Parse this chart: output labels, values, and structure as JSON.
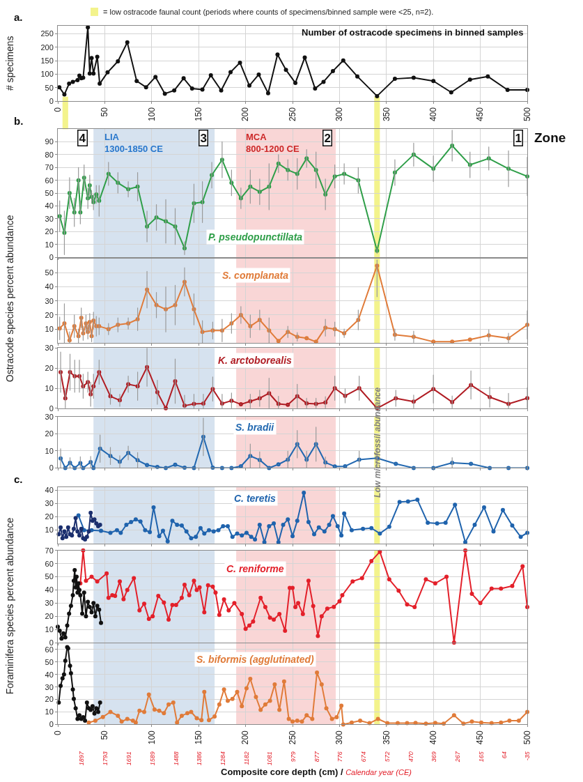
{
  "chart_data": [
    {
      "type": "line",
      "title": "Number of ostracode specimens in binned samples",
      "ylabel": "# specimens",
      "xlim": [
        0,
        500
      ],
      "xticks": [
        0,
        50,
        100,
        150,
        200,
        250,
        300,
        350,
        400,
        450,
        500
      ],
      "ylim": [
        0,
        280
      ],
      "yticks": [
        0,
        50,
        100,
        150,
        200,
        250
      ],
      "grid": true,
      "marker": "circle",
      "annotations": [
        "a."
      ],
      "bands": [
        {
          "axis": "x",
          "from": 5,
          "to": 11,
          "color": "#f3f38c",
          "label": "= low ostracode faunal count (periods where counts of specimens/binned sample were <25, n=2)."
        },
        {
          "axis": "x",
          "from": 337,
          "to": 343,
          "color": "#f3f38c"
        }
      ],
      "series": [
        {
          "color": "#111111",
          "x": [
            1.6,
            7,
            12,
            16,
            21,
            23,
            25,
            27,
            32,
            34,
            36,
            38,
            42,
            44.6,
            53,
            64,
            74,
            84,
            94,
            104,
            114,
            124,
            134,
            143,
            154,
            163,
            174,
            184,
            194,
            204,
            214,
            224,
            234,
            243,
            253,
            263,
            274,
            283,
            293,
            304,
            319,
            340,
            359,
            379,
            400,
            419,
            439,
            458,
            479,
            500
          ],
          "values": [
            52,
            25,
            65,
            72,
            78,
            95,
            85,
            87,
            274,
            103,
            160,
            103,
            165,
            65,
            107,
            148,
            218,
            75,
            52,
            90,
            28,
            40,
            85,
            47,
            43,
            96,
            40,
            108,
            143,
            58,
            99,
            30,
            173,
            116,
            68,
            162,
            47,
            72,
            112,
            151,
            92,
            19,
            83,
            87,
            75,
            33,
            80,
            92,
            42,
            42
          ]
        }
      ]
    },
    {
      "type": "line",
      "ylabel": "Ostracode species percent abundance",
      "xlim": [
        0,
        500
      ],
      "xticks": [
        0,
        50,
        100,
        150,
        200,
        250,
        300,
        350,
        400,
        450,
        500
      ],
      "ylim": [
        0,
        100
      ],
      "yticks": [
        0,
        10,
        20,
        30,
        40,
        50,
        60,
        70,
        80,
        90
      ],
      "grid": true,
      "marker": "circle",
      "tick_labels": "y",
      "annotations": [
        "b.",
        "Zone",
        {
          "text": "4",
          "x": 26,
          "y": 93
        },
        {
          "text": "3",
          "x": 155,
          "y": 93
        },
        {
          "text": "2",
          "x": 287,
          "y": 93
        },
        {
          "text": "1",
          "x": 490,
          "y": 93
        }
      ],
      "bands": [
        {
          "axis": "x",
          "from": 38,
          "to": 167,
          "color": "#d6e2ef",
          "label": "LIA\n1300-1850 CE"
        },
        {
          "axis": "x",
          "from": 190,
          "to": 296,
          "color": "#f9d6d6",
          "label": "MCA\n800-1200 CE"
        },
        {
          "axis": "x",
          "from": 337,
          "to": 343,
          "color": "#f3f38c"
        }
      ],
      "series": [
        {
          "name": "P. pseudopunctillata",
          "color": "#2e9e48",
          "x": [
            2,
            7,
            12.5,
            17.6,
            22,
            24,
            28,
            32,
            34,
            36,
            38,
            41,
            44,
            54,
            64,
            75,
            85,
            95,
            105,
            115,
            125,
            135,
            145,
            154,
            164,
            175,
            185,
            195,
            205,
            215,
            225,
            235,
            245,
            255,
            265,
            275,
            285,
            295,
            305,
            320,
            340,
            359,
            379,
            400,
            420,
            439,
            459,
            480,
            500
          ],
          "values": [
            32,
            19,
            50,
            35,
            60,
            35,
            62,
            46,
            56,
            47,
            43,
            49,
            44,
            65,
            58,
            53,
            55,
            24,
            31,
            28,
            24,
            7,
            42,
            43,
            64,
            76,
            58,
            46,
            55,
            51,
            55,
            73,
            68,
            65,
            77,
            68,
            49,
            63,
            65,
            60,
            5,
            66,
            80,
            69,
            87,
            72,
            77,
            69,
            63
          ],
          "errors": [
            12,
            17,
            12,
            11,
            10,
            9,
            10,
            8,
            8,
            5,
            6,
            7,
            12,
            9,
            8,
            6,
            11,
            12,
            10,
            17,
            14,
            5,
            15,
            16,
            10,
            14,
            10,
            8,
            13,
            10,
            18,
            7,
            8,
            12,
            7,
            14,
            12,
            9,
            8,
            10,
            2,
            10,
            9,
            10,
            12,
            10,
            9,
            14,
            15
          ]
        }
      ]
    },
    {
      "type": "line",
      "xlim": [
        0,
        500
      ],
      "xticks": [
        0,
        50,
        100,
        150,
        200,
        250,
        300,
        350,
        400,
        450,
        500
      ],
      "ylim": [
        0,
        60
      ],
      "yticks": [
        10,
        20,
        30,
        40,
        50
      ],
      "grid": true,
      "marker": "circle",
      "tick_labels": "y",
      "bands": [
        {
          "axis": "x",
          "from": 38,
          "to": 167,
          "color": "#d6e2ef"
        },
        {
          "axis": "x",
          "from": 190,
          "to": 296,
          "color": "#f9d6d6"
        },
        {
          "axis": "x",
          "from": 337,
          "to": 343,
          "color": "#f3f38c"
        }
      ],
      "series": [
        {
          "name": "S. complanata",
          "color": "#e07b39",
          "x": [
            2,
            7,
            12.5,
            17.6,
            22,
            25,
            27,
            30,
            32,
            34,
            36,
            38,
            41,
            44,
            54,
            64,
            75,
            85,
            95,
            105,
            115,
            125,
            135,
            145,
            154,
            165,
            175,
            185,
            195,
            205,
            215,
            225,
            235,
            245,
            255,
            265,
            275,
            285,
            295,
            305,
            320,
            340,
            359,
            379,
            400,
            420,
            439,
            459,
            480,
            500
          ],
          "values": [
            10.5,
            14,
            2,
            12,
            5,
            18,
            7,
            14,
            8,
            15,
            5,
            16,
            12,
            12,
            10,
            13,
            14,
            17,
            38,
            27,
            24,
            27,
            43.5,
            24,
            8,
            9,
            9,
            14,
            20,
            12,
            16.5,
            9,
            1.5,
            8,
            4.5,
            3.5,
            1,
            11,
            10,
            7,
            16.5,
            55,
            6,
            4.5,
            1,
            1,
            2.5,
            5.5,
            3.5,
            13
          ],
          "errors": [
            8,
            14,
            [
              0,
              8
            ],
            8,
            5,
            7,
            5,
            6,
            5,
            6,
            4,
            6,
            7,
            6,
            4,
            5,
            4,
            8,
            13,
            9,
            16,
            14,
            10,
            11,
            8,
            6,
            8,
            7,
            6,
            8,
            7,
            9,
            null,
            4,
            3,
            null,
            null,
            6,
            5,
            3,
            7,
            [
              33,
              59
            ],
            4,
            4,
            null,
            null,
            null,
            4,
            [
              0,
              7
            ],
            10
          ]
        }
      ]
    },
    {
      "type": "line",
      "xlim": [
        0,
        500
      ],
      "xticks": [
        0,
        50,
        100,
        150,
        200,
        250,
        300,
        350,
        400,
        450,
        500
      ],
      "ylim": [
        0,
        30
      ],
      "yticks": [
        0,
        10,
        20,
        30
      ],
      "grid": true,
      "marker": "circle",
      "tick_labels": "y",
      "bands": [
        {
          "axis": "x",
          "from": 38,
          "to": 167,
          "color": "#d6e2ef"
        },
        {
          "axis": "x",
          "from": 190,
          "to": 296,
          "color": "#f9d6d6"
        },
        {
          "axis": "x",
          "from": 337,
          "to": 343,
          "color": "#f3f38c"
        }
      ],
      "series": [
        {
          "name": "K. arctoborealis",
          "color": "#b01c23",
          "x": [
            3,
            8,
            13,
            18,
            23,
            27,
            32,
            35,
            38,
            44,
            56,
            66,
            75,
            85,
            95,
            106,
            115,
            125,
            135,
            145,
            155,
            165,
            175,
            185,
            195,
            205,
            215,
            225,
            235,
            245,
            255,
            265,
            275,
            285,
            295,
            306,
            321,
            340,
            360,
            379,
            400,
            420,
            440,
            460,
            480,
            500
          ],
          "values": [
            18,
            5,
            18,
            16,
            16,
            11,
            13,
            7,
            11,
            18,
            6,
            4,
            12,
            11,
            20.5,
            8,
            0,
            13.5,
            1.3,
            2.2,
            2.4,
            9.6,
            2.4,
            3.8,
            2,
            3.5,
            5,
            7.5,
            2.2,
            1.8,
            6,
            2.5,
            2.2,
            2.9,
            10,
            6.2,
            10,
            0,
            5,
            3.3,
            9.6,
            3.1,
            11.6,
            5.6,
            2.2,
            5.1
          ],
          "errors": [
            10,
            5,
            9,
            8,
            8,
            6,
            5,
            6,
            6,
            6,
            4,
            3,
            4,
            7,
            9.5,
            6,
            null,
            11,
            [
              0,
              6.5
            ],
            [
              0,
              7
            ],
            [
              0,
              7
            ],
            6,
            [
              0,
              7
            ],
            3.8,
            null,
            3.5,
            4,
            7.5,
            [
              0,
              6
            ],
            null,
            6,
            2.5,
            [
              0,
              5
            ],
            2.9,
            6,
            3.5,
            6,
            null,
            4,
            3.3,
            7,
            3.1,
            7,
            5,
            [
              0,
              7.5
            ],
            5.1
          ]
        }
      ]
    },
    {
      "type": "line",
      "xlim": [
        0,
        500
      ],
      "xticks": [
        0,
        50,
        100,
        150,
        200,
        250,
        300,
        350,
        400,
        450,
        500
      ],
      "ylim": [
        0,
        30
      ],
      "yticks": [
        0,
        10,
        20,
        30
      ],
      "grid": true,
      "marker": "circle",
      "tick_labels": "y",
      "bands": [
        {
          "axis": "x",
          "from": 38,
          "to": 167,
          "color": "#d6e2ef"
        },
        {
          "axis": "x",
          "from": 190,
          "to": 296,
          "color": "#f9d6d6"
        },
        {
          "axis": "x",
          "from": 337,
          "to": 343,
          "color": "#f3f38c",
          "label": "Low microfossil abundance"
        }
      ],
      "series": [
        {
          "name": "S. bradii",
          "color": "#2268b0",
          "x": [
            3,
            8,
            13,
            18,
            24,
            27,
            35,
            38,
            45,
            56,
            66,
            75,
            85,
            95,
            106,
            115,
            125,
            135,
            145,
            155,
            165,
            175,
            185,
            195,
            205,
            215,
            225,
            235,
            245,
            255,
            265,
            275,
            285,
            295,
            306,
            321,
            340,
            360,
            379,
            400,
            420,
            440,
            460,
            480,
            500
          ],
          "values": [
            5.6,
            0,
            3,
            0,
            2.8,
            0,
            3.4,
            0,
            11.3,
            7,
            3.6,
            8.8,
            4.5,
            1.7,
            0.6,
            0,
            1.9,
            0.2,
            0,
            18.2,
            0.2,
            0,
            0,
            1,
            7,
            4.7,
            0,
            2.1,
            4.9,
            13.9,
            4.9,
            13.9,
            3.2,
            0.9,
            1,
            4.9,
            5.8,
            2.4,
            0,
            0,
            3,
            2.4,
            0,
            0,
            0
          ],
          "errors": [
            5.6,
            null,
            3,
            null,
            [
              0,
              6.5
            ],
            null,
            3.4,
            null,
            8,
            5,
            3.6,
            4,
            4.5,
            null,
            null,
            null,
            null,
            null,
            null,
            11,
            null,
            null,
            null,
            null,
            7,
            4.7,
            null,
            null,
            4.9,
            8,
            4.9,
            10,
            3.2,
            null,
            null,
            4.9,
            5.8,
            null,
            null,
            null,
            3,
            null,
            null,
            null,
            null
          ]
        }
      ]
    },
    {
      "type": "line",
      "ylabel": "Foraminifera species percent abundance",
      "xlim": [
        0,
        500
      ],
      "xticks": [
        0,
        50,
        100,
        150,
        200,
        250,
        300,
        350,
        400,
        450,
        500
      ],
      "ylim": [
        0,
        42
      ],
      "yticks": [
        10,
        20,
        30,
        40
      ],
      "grid": true,
      "marker": "circle",
      "tick_labels": "y",
      "annotations": [
        "c."
      ],
      "bands": [
        {
          "axis": "x",
          "from": 38,
          "to": 167,
          "color": "#d6e2ef"
        },
        {
          "axis": "x",
          "from": 190,
          "to": 296,
          "color": "#f9d6d6"
        },
        {
          "axis": "x",
          "from": 337,
          "to": 343,
          "color": "#f3f38c"
        }
      ],
      "series": [
        {
          "name": "C. teretis",
          "color": "#1f63ad",
          "x": [
            22,
            28,
            36,
            46,
            56,
            63,
            67,
            73,
            78,
            83,
            88,
            93,
            98,
            102,
            108,
            112,
            117,
            122,
            127,
            132,
            137,
            142,
            147,
            152,
            156,
            161,
            166,
            171,
            176,
            181,
            186,
            191,
            196,
            201,
            206,
            210,
            215,
            220,
            225,
            230,
            235,
            240,
            245,
            250,
            255,
            262,
            267,
            273,
            278,
            284,
            289,
            293,
            298,
            302,
            305,
            313,
            325,
            334,
            343,
            353,
            364,
            373,
            383,
            394,
            404,
            413,
            423,
            434,
            444,
            454,
            464,
            474,
            484,
            493,
            500
          ],
          "values": [
            21,
            10,
            10,
            9.5,
            8,
            10,
            8,
            14,
            16,
            18,
            16.5,
            10,
            8.5,
            27,
            5.5,
            9.5,
            1.6,
            17,
            14,
            13.5,
            9,
            4,
            5,
            11.5,
            7.5,
            10,
            9,
            10,
            13,
            13,
            5,
            7.5,
            6,
            8,
            5,
            3,
            14,
            1,
            13,
            15,
            1,
            14,
            18,
            5.5,
            17,
            38,
            16,
            7,
            12,
            9,
            14,
            20.5,
            13,
            6,
            22.5,
            10,
            11,
            11.5,
            7.5,
            12.5,
            31,
            31.5,
            32.7,
            15.5,
            15,
            15.5,
            29,
            1,
            14,
            27,
            9,
            25,
            13.5,
            5,
            8
          ]
        },
        {
          "color": "#1b2f6e",
          "x": [
            1,
            3,
            5,
            7,
            9,
            11,
            13,
            15,
            17,
            19,
            21,
            23,
            25,
            27,
            29,
            31,
            33,
            35,
            37,
            39,
            41,
            43,
            45
          ],
          "values": [
            7,
            12,
            4,
            9,
            5,
            12,
            7,
            6,
            11,
            19,
            9,
            6,
            11,
            4,
            3,
            5,
            9,
            23,
            17,
            18,
            15,
            13,
            14
          ]
        }
      ]
    },
    {
      "type": "line",
      "xlim": [
        0,
        500
      ],
      "xticks": [
        0,
        50,
        100,
        150,
        200,
        250,
        300,
        350,
        400,
        450,
        500
      ],
      "ylim": [
        0,
        70
      ],
      "yticks": [
        0,
        10,
        20,
        30,
        40,
        50,
        60,
        70
      ],
      "grid": true,
      "marker": "circle",
      "tick_labels": "y",
      "bands": [
        {
          "axis": "x",
          "from": 38,
          "to": 167,
          "color": "#d6e2ef"
        },
        {
          "axis": "x",
          "from": 190,
          "to": 296,
          "color": "#f9d6d6"
        },
        {
          "axis": "x",
          "from": 337,
          "to": 343,
          "color": "#f3f38c"
        }
      ],
      "series": [
        {
          "name": "C. reniforme",
          "color": "#e3202a",
          "x": [
            24,
            27,
            30,
            36,
            42,
            52,
            54,
            58,
            61,
            66,
            70,
            74,
            81,
            87,
            92,
            97,
            101,
            107,
            113,
            118,
            122,
            126,
            132,
            135,
            140,
            145,
            148,
            151,
            156,
            160,
            165,
            168,
            172,
            177,
            182,
            188,
            196,
            200,
            204,
            208,
            216,
            221,
            226,
            230,
            236,
            242,
            247,
            250,
            253,
            256,
            261,
            267,
            272,
            277,
            281,
            287,
            294,
            300,
            303,
            314,
            324,
            334,
            343,
            353,
            363,
            372,
            380,
            392,
            402,
            414,
            422,
            434,
            441,
            450,
            462,
            472,
            484,
            495,
            500
          ],
          "values": [
            45,
            70,
            47,
            50,
            46.5,
            52.6,
            34,
            36,
            35.5,
            46.5,
            33,
            40,
            49,
            24.5,
            29.5,
            18,
            20,
            35.5,
            30.5,
            17.5,
            28.6,
            28.6,
            34,
            44,
            36,
            47,
            40,
            42,
            23,
            43.5,
            42.5,
            38,
            21,
            32.8,
            24.5,
            30,
            21.7,
            10.5,
            13,
            16,
            34,
            27,
            19,
            17.5,
            21.7,
            9,
            41.5,
            41.5,
            27,
            30,
            21.7,
            47,
            27.8,
            5,
            20,
            25.8,
            27.2,
            31.4,
            36,
            46.5,
            49,
            62,
            69,
            48,
            39.5,
            29,
            27,
            48,
            45,
            50,
            0,
            70,
            37,
            30,
            41,
            41,
            43,
            58,
            27
          ]
        },
        {
          "color": "#111111",
          "x": [
            0,
            2,
            4,
            6,
            8,
            10,
            12,
            14,
            16,
            17,
            18,
            19,
            20,
            21,
            22,
            23,
            24,
            26,
            28,
            30,
            32,
            34,
            36,
            38,
            40,
            42,
            44,
            46
          ],
          "values": [
            12,
            9,
            3,
            7,
            4,
            13,
            22,
            28,
            36,
            47,
            55,
            42,
            50,
            38,
            45,
            40,
            36,
            22,
            38,
            20,
            31,
            27,
            23,
            30,
            20,
            28,
            25,
            15
          ]
        }
      ]
    },
    {
      "type": "line",
      "xlabel": "Composite core depth (cm) /",
      "x2label": "Calendar year (CE)",
      "xlim": [
        0,
        500
      ],
      "xticks": [
        0,
        50,
        100,
        150,
        200,
        250,
        300,
        350,
        400,
        450,
        500
      ],
      "ylim": [
        0,
        65
      ],
      "yticks": [
        0,
        10,
        20,
        30,
        40,
        50,
        60
      ],
      "grid": true,
      "marker": "circle",
      "x2lim": [
        2000,
        -35
      ],
      "x2ticks": [
        1897,
        1793,
        1691,
        1589,
        1488,
        1386,
        1284,
        1182,
        1081,
        979,
        877,
        776,
        674,
        572,
        470,
        369,
        267,
        165,
        64,
        -35
      ],
      "bands": [
        {
          "axis": "x",
          "from": 38,
          "to": 167,
          "color": "#d6e2ef"
        },
        {
          "axis": "x",
          "from": 190,
          "to": 296,
          "color": "#f9d6d6"
        },
        {
          "axis": "x",
          "from": 337,
          "to": 343,
          "color": "#f3f38c"
        }
      ],
      "series": [
        {
          "name": "S. biformis (agglutinated)",
          "color": "#e07b39",
          "x": [
            33,
            40,
            48,
            56,
            64,
            68,
            74,
            80,
            83,
            87,
            92,
            97,
            103,
            108,
            113,
            118,
            123,
            127,
            132,
            138,
            142,
            148,
            153,
            156,
            161,
            167,
            172,
            177,
            181,
            186,
            191,
            196,
            201,
            205,
            211,
            216,
            221,
            226,
            231,
            236,
            241,
            246,
            250,
            255,
            260,
            265,
            271,
            276,
            281,
            286,
            292,
            297,
            302,
            304,
            313,
            322,
            332,
            341,
            351,
            362,
            372,
            381,
            392,
            402,
            411,
            422,
            432,
            441,
            451,
            462,
            472,
            481,
            491,
            500
          ],
          "values": [
            1.5,
            3,
            6,
            10,
            7,
            2.3,
            4.4,
            3,
            1.5,
            11,
            10,
            24,
            12,
            11,
            9,
            16,
            17.5,
            1.5,
            7,
            9,
            10,
            5,
            3.5,
            26,
            3.5,
            6.4,
            16,
            28,
            19,
            20.5,
            26,
            14.6,
            29,
            36.5,
            22,
            11.7,
            16,
            19,
            32,
            11.7,
            34.5,
            4.4,
            2.3,
            3,
            2.3,
            7.3,
            4.4,
            41.5,
            32,
            13,
            4.4,
            5.8,
            15,
            0,
            1.5,
            3,
            1,
            4.4,
            1,
            1,
            1,
            1.2,
            0.6,
            1.2,
            0.6,
            7.3,
            0.6,
            2.3,
            1.5,
            1,
            1.5,
            3,
            3,
            10
          ]
        },
        {
          "color": "#111111",
          "x": [
            1,
            3,
            5,
            6.6,
            8,
            10,
            11,
            13,
            14,
            16,
            17,
            19,
            21,
            23,
            25,
            27,
            29,
            31,
            33,
            35,
            37,
            39,
            41,
            43,
            45
          ],
          "values": [
            17.5,
            31,
            37,
            40,
            51,
            62,
            61,
            47,
            41,
            28,
            20.5,
            13,
            4.4,
            7.3,
            4.4,
            5.8,
            3,
            17.5,
            13,
            11.7,
            14.6,
            8.8,
            13,
            10,
            17.5
          ]
        }
      ]
    }
  ]
}
